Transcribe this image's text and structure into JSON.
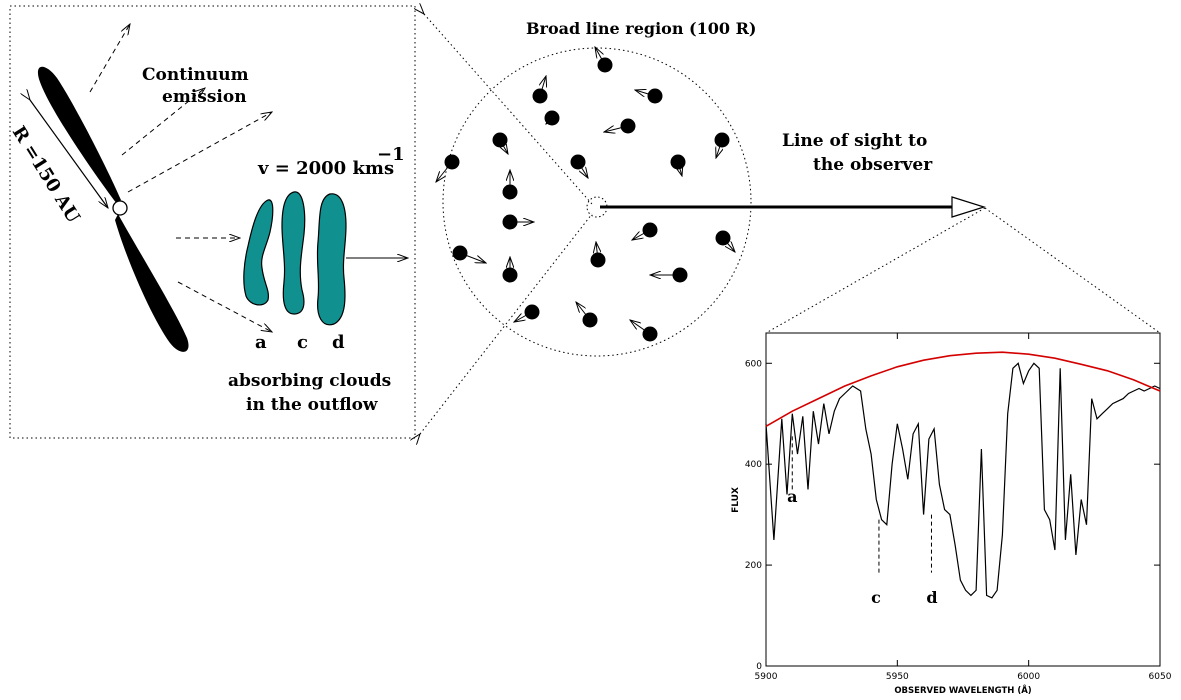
{
  "diagram": {
    "continuum_label_1": "Continuum",
    "continuum_label_2": "emission",
    "radius_label": "R =150 AU",
    "velocity_label": "v = 2000 kms",
    "velocity_exponent": "−1",
    "cloud_letters": [
      "a",
      "c",
      "d"
    ],
    "absorbing_label_1": "absorbing clouds",
    "absorbing_label_2": "in the outflow",
    "blr_label": "Broad line region (100 R)",
    "sight_label_1": "Line of sight to",
    "sight_label_2": "the observer",
    "colors": {
      "cloud_fill": "#119090",
      "fit_curve": "#d40000"
    }
  },
  "chart_data": {
    "type": "line",
    "xlabel": "OBSERVED WAVELENGTH (Å)",
    "ylabel": "FLUX",
    "xlim": [
      5900,
      6050
    ],
    "ylim": [
      0,
      660
    ],
    "x_ticks": [
      5900,
      5950,
      6000,
      6050
    ],
    "y_ticks": [
      0,
      200,
      400,
      600
    ],
    "series": [
      {
        "x": [
          5900,
          5903,
          5906,
          5908,
          5910,
          5912,
          5914,
          5916,
          5918,
          5920,
          5922,
          5924,
          5926,
          5928,
          5930,
          5933,
          5936,
          5938,
          5940,
          5942,
          5944,
          5946,
          5948,
          5950,
          5952,
          5954,
          5956,
          5958,
          5960,
          5962,
          5964,
          5966,
          5968,
          5970,
          5972,
          5974,
          5976,
          5978,
          5980,
          5982,
          5984,
          5986,
          5988,
          5990,
          5992,
          5994,
          5996,
          5998,
          6000,
          6002,
          6004,
          6006,
          6008,
          6010,
          6012,
          6014,
          6016,
          6018,
          6020,
          6022,
          6024,
          6026,
          6028,
          6030,
          6032,
          6034,
          6036,
          6038,
          6040,
          6042,
          6044,
          6046,
          6048,
          6050
        ],
        "values": [
          480,
          250,
          490,
          340,
          500,
          420,
          495,
          350,
          505,
          440,
          520,
          460,
          505,
          530,
          540,
          555,
          545,
          470,
          420,
          330,
          290,
          280,
          400,
          480,
          430,
          370,
          460,
          480,
          300,
          450,
          470,
          360,
          310,
          300,
          240,
          170,
          150,
          140,
          150,
          430,
          140,
          135,
          150,
          260,
          500,
          590,
          600,
          560,
          585,
          600,
          590,
          310,
          290,
          230,
          590,
          250,
          380,
          220,
          330,
          280,
          530,
          490,
          500,
          510,
          520,
          525,
          530,
          540,
          545,
          550,
          545,
          550,
          555,
          550
        ]
      },
      {
        "x": [
          5900,
          5910,
          5920,
          5930,
          5940,
          5950,
          5960,
          5970,
          5980,
          5990,
          6000,
          6010,
          6020,
          6030,
          6040,
          6050
        ],
        "values": [
          475,
          505,
          530,
          555,
          575,
          593,
          606,
          615,
          620,
          622,
          618,
          610,
          598,
          585,
          567,
          545
        ]
      }
    ],
    "annotations": [
      "a",
      "c",
      "d"
    ]
  }
}
